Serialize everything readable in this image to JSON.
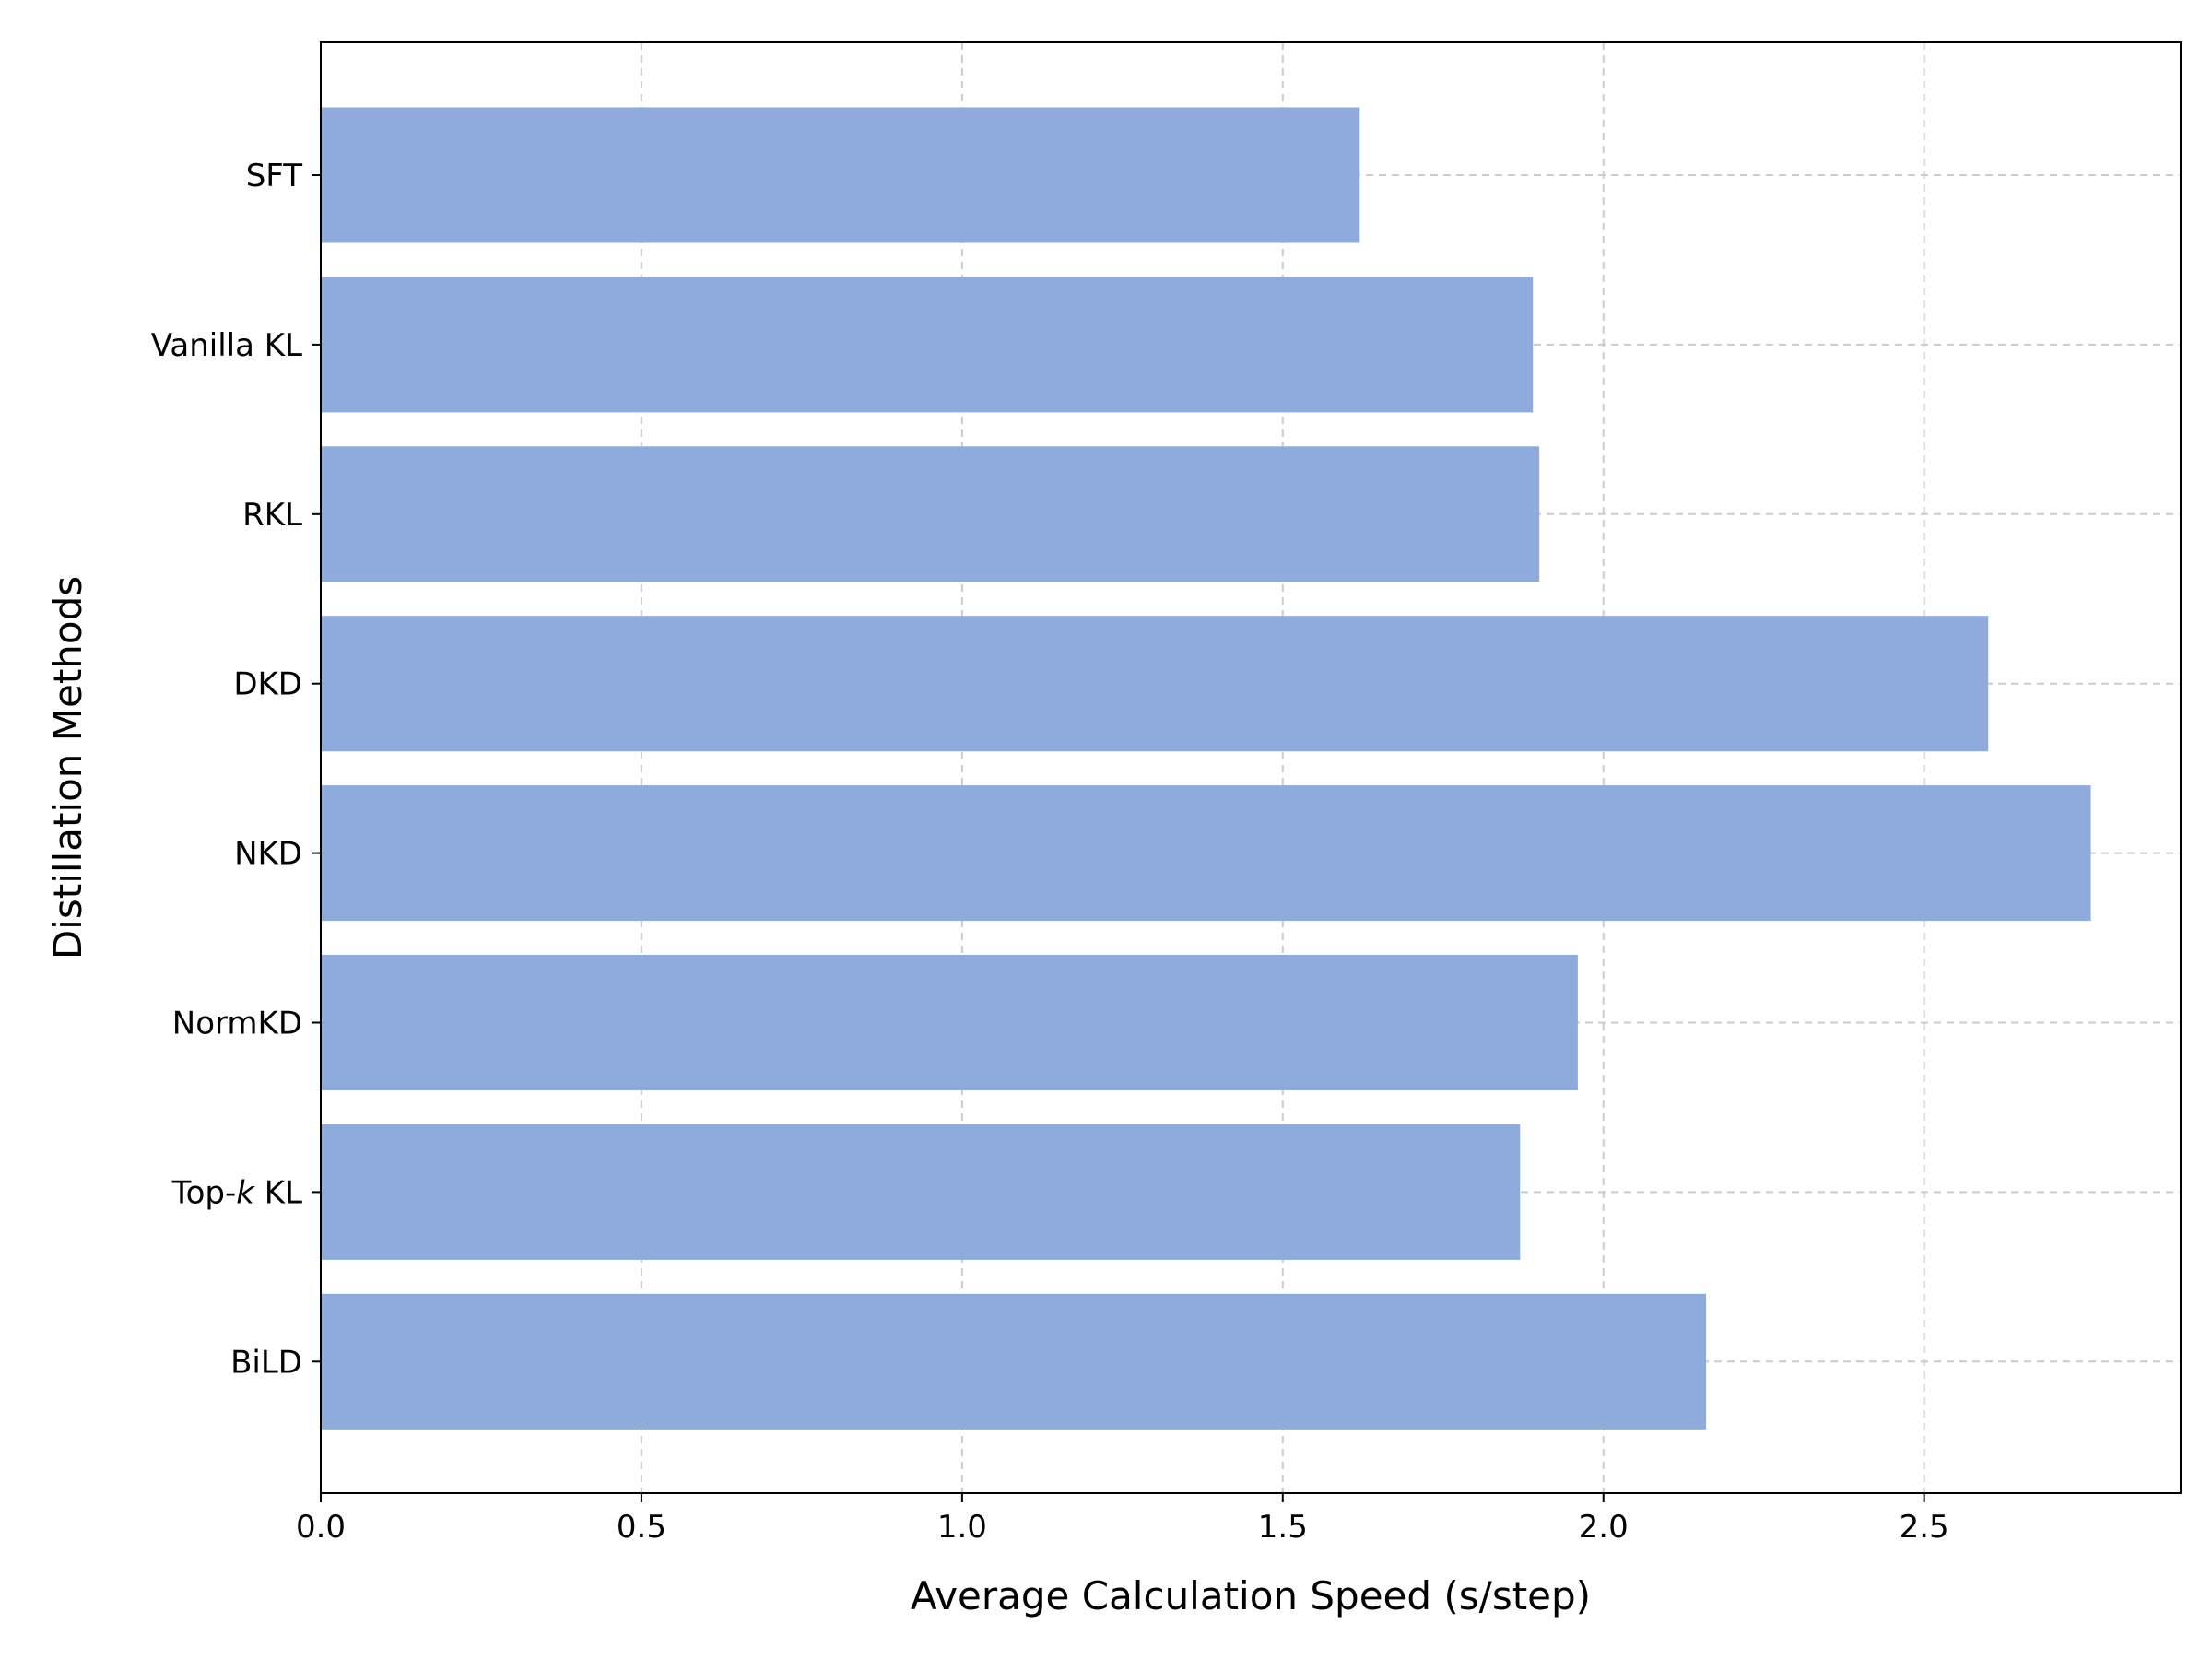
{
  "chart_data": {
    "type": "bar",
    "orientation": "horizontal",
    "categories": [
      "SFT",
      "Vanilla KL",
      "RKL",
      "DKD",
      "NKD",
      "NormKD",
      "Top-k KL",
      "BiLD"
    ],
    "category_labels": [
      {
        "parts": [
          {
            "text": "SFT",
            "italic": false
          }
        ]
      },
      {
        "parts": [
          {
            "text": "Vanilla KL",
            "italic": false
          }
        ]
      },
      {
        "parts": [
          {
            "text": "RKL",
            "italic": false
          }
        ]
      },
      {
        "parts": [
          {
            "text": "DKD",
            "italic": false
          }
        ]
      },
      {
        "parts": [
          {
            "text": "NKD",
            "italic": false
          }
        ]
      },
      {
        "parts": [
          {
            "text": "NormKD",
            "italic": false
          }
        ]
      },
      {
        "parts": [
          {
            "text": "Top-",
            "italic": false
          },
          {
            "text": "k",
            "italic": true
          },
          {
            "text": " KL",
            "italic": false
          }
        ]
      },
      {
        "parts": [
          {
            "text": "BiLD",
            "italic": false
          }
        ]
      }
    ],
    "values": [
      1.62,
      1.89,
      1.9,
      2.6,
      2.76,
      1.96,
      1.87,
      2.16
    ],
    "title": "",
    "xlabel": "Average Calculation Speed (s/step)",
    "ylabel": "Distillation Methods",
    "xlim": [
      0.0,
      2.9
    ],
    "xticks": [
      0.0,
      0.5,
      1.0,
      1.5,
      2.0,
      2.5
    ],
    "xtick_labels": [
      "0.0",
      "0.5",
      "1.0",
      "1.5",
      "2.0",
      "2.5"
    ],
    "grid": true,
    "grid_style": "dashed",
    "bar_color": "#8faadc",
    "grid_color": "#cccccc"
  }
}
